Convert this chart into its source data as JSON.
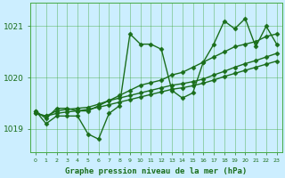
{
  "title": "Graphe pression niveau de la mer (hPa)",
  "bg_color": "#cceeff",
  "grid_color": "#44aa44",
  "line_color": "#1a6e1a",
  "marker": "D",
  "markersize": 2.5,
  "linewidth": 1.0,
  "ylim": [
    1018.55,
    1021.45
  ],
  "yticks": [
    1019,
    1020,
    1021
  ],
  "xlim": [
    -0.5,
    23.5
  ],
  "xticks": [
    0,
    1,
    2,
    3,
    4,
    5,
    6,
    7,
    8,
    9,
    10,
    11,
    12,
    13,
    14,
    15,
    16,
    17,
    18,
    19,
    20,
    21,
    22,
    23
  ],
  "series": [
    [
      1019.35,
      1019.1,
      1019.25,
      1019.25,
      1019.25,
      1018.9,
      1018.8,
      1019.3,
      1019.45,
      1020.85,
      1020.65,
      1020.65,
      1020.55,
      1019.75,
      1019.6,
      1019.7,
      1020.3,
      1020.65,
      1021.1,
      1020.95,
      1021.15,
      1020.6,
      1021.0,
      1020.65
    ],
    [
      1019.35,
      1019.2,
      1019.4,
      1019.4,
      1019.35,
      1019.35,
      1019.45,
      1019.55,
      1019.65,
      1019.75,
      1019.85,
      1019.9,
      1019.95,
      1020.05,
      1020.1,
      1020.2,
      1020.3,
      1020.4,
      1020.5,
      1020.6,
      1020.65,
      1020.7,
      1020.8,
      1020.85
    ],
    [
      1019.3,
      1019.25,
      1019.35,
      1019.38,
      1019.4,
      1019.42,
      1019.48,
      1019.55,
      1019.6,
      1019.65,
      1019.7,
      1019.75,
      1019.8,
      1019.85,
      1019.88,
      1019.92,
      1019.97,
      1020.05,
      1020.12,
      1020.2,
      1020.27,
      1020.33,
      1020.4,
      1020.47
    ],
    [
      1019.3,
      1019.25,
      1019.3,
      1019.33,
      1019.35,
      1019.38,
      1019.42,
      1019.47,
      1019.52,
      1019.57,
      1019.62,
      1019.67,
      1019.72,
      1019.77,
      1019.8,
      1019.84,
      1019.89,
      1019.95,
      1020.02,
      1020.08,
      1020.14,
      1020.2,
      1020.26,
      1020.32
    ]
  ]
}
